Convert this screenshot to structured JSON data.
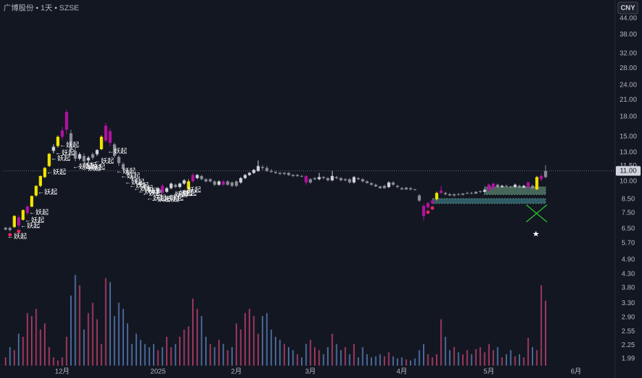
{
  "chart_data": {
    "type": "candlestick",
    "title": "广博股份 • 1天 • SZSE",
    "currency": "CNY",
    "log_scale": true,
    "grid": false,
    "ylim": [
      1.87,
      52.1
    ],
    "yticks": [
      {
        "value": 44,
        "label": "44.00"
      },
      {
        "value": 38,
        "label": "38.00"
      },
      {
        "value": 32,
        "label": "32.00"
      },
      {
        "value": 28,
        "label": "28.00"
      },
      {
        "value": 24,
        "label": "24.00"
      },
      {
        "value": 21,
        "label": "21.00"
      },
      {
        "value": 18,
        "label": "18.00"
      },
      {
        "value": 15,
        "label": "15.00"
      },
      {
        "value": 13,
        "label": "13.00"
      },
      {
        "value": 11.5,
        "label": "11.50"
      },
      {
        "value": 10,
        "label": "10.00"
      },
      {
        "value": 8.5,
        "label": "8.50"
      },
      {
        "value": 7.5,
        "label": "7.50"
      },
      {
        "value": 6.5,
        "label": "6.50"
      },
      {
        "value": 5.7,
        "label": "5.70"
      },
      {
        "value": 4.9,
        "label": "4.90"
      },
      {
        "value": 4.3,
        "label": "4.30"
      },
      {
        "value": 3.8,
        "label": "3.80"
      },
      {
        "value": 3.3,
        "label": "3.30"
      },
      {
        "value": 2.9,
        "label": "2.90"
      },
      {
        "value": 2.55,
        "label": "2.55"
      },
      {
        "value": 2.25,
        "label": "2.25"
      },
      {
        "value": 1.99,
        "label": "1.99"
      }
    ],
    "last_price": {
      "value": 11.0,
      "label": "11.00"
    },
    "categories": [
      null,
      null,
      null,
      null,
      null,
      null,
      null,
      null,
      null,
      null,
      null,
      null,
      null,
      "12月",
      null,
      null,
      null,
      null,
      null,
      null,
      null,
      null,
      null,
      null,
      null,
      null,
      null,
      null,
      null,
      null,
      null,
      null,
      null,
      null,
      null,
      "2025",
      null,
      null,
      null,
      null,
      null,
      null,
      null,
      null,
      null,
      null,
      null,
      null,
      null,
      null,
      null,
      null,
      null,
      "2月",
      null,
      null,
      null,
      null,
      null,
      null,
      null,
      null,
      null,
      null,
      null,
      null,
      null,
      null,
      null,
      null,
      "3月",
      null,
      null,
      null,
      null,
      null,
      null,
      null,
      null,
      null,
      null,
      null,
      null,
      null,
      null,
      null,
      null,
      null,
      null,
      null,
      null,
      "4月",
      null,
      null,
      null,
      null,
      null,
      null,
      null,
      null,
      null,
      null,
      null,
      null,
      null,
      null,
      null,
      null,
      null,
      null,
      null,
      "5月",
      null,
      null,
      null,
      null,
      null,
      null,
      null,
      null,
      null,
      null,
      null,
      null,
      null,
      null,
      null,
      null,
      null,
      null,
      null,
      "6月",
      null,
      null,
      null,
      null,
      null,
      null,
      null,
      null
    ],
    "ohlc": [
      [
        6.45,
        6.62,
        6.4,
        6.55
      ],
      [
        6.55,
        6.62,
        6.35,
        6.42
      ],
      [
        6.6,
        7.35,
        6.55,
        7.3
      ],
      [
        7.2,
        7.35,
        6.55,
        6.7
      ],
      [
        7.05,
        7.75,
        7.0,
        7.7
      ],
      [
        7.5,
        8.05,
        7.35,
        7.95
      ],
      [
        7.95,
        8.8,
        7.9,
        8.75
      ],
      [
        8.8,
        9.65,
        8.7,
        9.6
      ],
      [
        9.6,
        10.55,
        9.5,
        10.5
      ],
      [
        10.4,
        11.4,
        10.3,
        11.3
      ],
      [
        11.5,
        12.95,
        11.4,
        12.85
      ],
      [
        13.2,
        14.0,
        12.9,
        13.7
      ],
      [
        13.8,
        15.2,
        13.6,
        15.0
      ],
      [
        15.0,
        16.4,
        14.6,
        15.9
      ],
      [
        16.0,
        19.2,
        15.4,
        18.8
      ],
      [
        15.5,
        16.0,
        13.0,
        13.3
      ],
      [
        13.2,
        13.6,
        12.0,
        12.3
      ],
      [
        12.3,
        13.0,
        12.1,
        12.8
      ],
      [
        12.6,
        12.9,
        11.8,
        12.0
      ],
      [
        12.1,
        12.6,
        11.9,
        12.4
      ],
      [
        12.4,
        13.0,
        12.2,
        12.8
      ],
      [
        12.8,
        13.4,
        12.6,
        13.3
      ],
      [
        13.4,
        15.2,
        13.3,
        15.0
      ],
      [
        14.5,
        17.0,
        14.3,
        16.6
      ],
      [
        15.8,
        16.2,
        13.8,
        14.2
      ],
      [
        14.0,
        14.2,
        12.4,
        12.6
      ],
      [
        12.5,
        12.7,
        11.5,
        11.8
      ],
      [
        11.7,
        11.9,
        11.0,
        11.2
      ],
      [
        11.1,
        11.3,
        10.4,
        10.6
      ],
      [
        10.5,
        10.6,
        10.1,
        10.2
      ],
      [
        10.2,
        10.3,
        9.8,
        9.9
      ],
      [
        9.9,
        10.1,
        9.6,
        9.7
      ],
      [
        9.7,
        9.9,
        9.4,
        9.5
      ],
      [
        9.5,
        9.6,
        9.0,
        9.1
      ],
      [
        9.2,
        9.4,
        8.9,
        9.0
      ],
      [
        9.0,
        9.5,
        8.9,
        9.4
      ],
      [
        9.6,
        9.8,
        8.9,
        9.0
      ],
      [
        9.1,
        9.5,
        9.0,
        9.4
      ],
      [
        9.4,
        9.9,
        9.3,
        9.8
      ],
      [
        9.7,
        9.8,
        9.4,
        9.5
      ],
      [
        9.5,
        9.9,
        9.4,
        9.8
      ],
      [
        9.8,
        10.2,
        9.7,
        10.1
      ],
      [
        9.3,
        10.2,
        9.2,
        10.0
      ],
      [
        10.0,
        10.8,
        9.9,
        10.6
      ],
      [
        10.3,
        10.7,
        10.2,
        10.6
      ],
      [
        10.5,
        10.6,
        10.1,
        10.2
      ],
      [
        10.2,
        10.3,
        9.9,
        10.0
      ],
      [
        10.0,
        10.3,
        9.9,
        10.2
      ],
      [
        10.0,
        10.1,
        9.6,
        9.7
      ],
      [
        9.7,
        10.1,
        9.6,
        10.0
      ],
      [
        10.0,
        10.1,
        9.6,
        9.7
      ],
      [
        9.7,
        10.1,
        9.6,
        10.0
      ],
      [
        9.9,
        10.0,
        9.5,
        9.6
      ],
      [
        9.6,
        10.1,
        9.5,
        10.0
      ],
      [
        9.9,
        10.4,
        9.8,
        10.3
      ],
      [
        10.3,
        10.7,
        10.2,
        10.6
      ],
      [
        10.6,
        10.9,
        10.5,
        10.8
      ],
      [
        10.8,
        11.2,
        10.7,
        11.1
      ],
      [
        11.0,
        12.1,
        10.9,
        11.5
      ],
      [
        11.4,
        11.6,
        11.1,
        11.3
      ],
      [
        11.3,
        11.5,
        10.9,
        11.0
      ],
      [
        11.0,
        11.2,
        10.8,
        10.9
      ],
      [
        10.9,
        11.0,
        10.7,
        10.8
      ],
      [
        10.8,
        10.9,
        10.6,
        10.7
      ],
      [
        10.7,
        10.9,
        10.6,
        10.8
      ],
      [
        10.8,
        10.9,
        10.5,
        10.6
      ],
      [
        10.6,
        10.7,
        10.4,
        10.5
      ],
      [
        10.5,
        10.7,
        10.4,
        10.6
      ],
      [
        10.5,
        10.6,
        10.4,
        10.45
      ],
      [
        10.5,
        10.6,
        9.7,
        9.9
      ],
      [
        9.9,
        10.3,
        9.8,
        10.2
      ],
      [
        10.2,
        10.4,
        10.1,
        10.3
      ],
      [
        10.2,
        10.8,
        10.1,
        10.4
      ],
      [
        10.4,
        10.5,
        10.2,
        10.3
      ],
      [
        10.3,
        10.4,
        10.0,
        10.1
      ],
      [
        10.1,
        11.0,
        10.0,
        10.5
      ],
      [
        10.4,
        10.5,
        10.2,
        10.3
      ],
      [
        10.3,
        10.4,
        10.0,
        10.1
      ],
      [
        10.1,
        10.3,
        10.0,
        10.2
      ],
      [
        10.2,
        10.3,
        9.8,
        9.9
      ],
      [
        9.9,
        10.5,
        9.8,
        10.4
      ],
      [
        10.3,
        10.4,
        10.1,
        10.2
      ],
      [
        10.2,
        10.3,
        9.9,
        10.0
      ],
      [
        10.0,
        10.1,
        9.8,
        9.85
      ],
      [
        9.85,
        9.9,
        9.6,
        9.7
      ],
      [
        9.7,
        9.8,
        9.5,
        9.55
      ],
      [
        9.55,
        9.6,
        9.35,
        9.4
      ],
      [
        9.4,
        9.7,
        9.35,
        9.6
      ],
      [
        9.5,
        10.0,
        9.4,
        9.9
      ],
      [
        9.9,
        10.0,
        9.6,
        9.7
      ],
      [
        9.6,
        9.7,
        9.4,
        9.5
      ],
      [
        9.4,
        9.5,
        9.25,
        9.3
      ],
      [
        9.3,
        9.5,
        9.25,
        9.45
      ],
      [
        9.4,
        9.5,
        9.2,
        9.3
      ],
      [
        9.3,
        9.35,
        9.2,
        9.25
      ],
      [
        8.8,
        8.9,
        8.3,
        8.4
      ],
      [
        8.0,
        8.1,
        7.0,
        7.3
      ],
      [
        7.9,
        8.3,
        7.8,
        8.2
      ],
      [
        8.2,
        8.5,
        8.1,
        8.4
      ],
      [
        8.5,
        9.1,
        8.4,
        9.0
      ],
      [
        9.0,
        9.6,
        8.9,
        9.2
      ],
      [
        9.0,
        9.1,
        8.8,
        8.9
      ],
      [
        8.9,
        9.0,
        8.75,
        8.8
      ],
      [
        8.8,
        8.95,
        8.7,
        8.9
      ],
      [
        8.9,
        9.0,
        8.8,
        8.85
      ],
      [
        8.85,
        9.0,
        8.8,
        8.95
      ],
      [
        8.95,
        9.1,
        8.9,
        9.0
      ],
      [
        9.0,
        9.1,
        8.9,
        8.95
      ],
      [
        8.95,
        9.15,
        8.9,
        9.1
      ],
      [
        9.1,
        9.2,
        9.0,
        9.15
      ],
      [
        9.1,
        9.3,
        9.05,
        9.25
      ],
      [
        9.2,
        9.8,
        9.15,
        9.7
      ],
      [
        9.4,
        9.9,
        9.3,
        9.8
      ],
      [
        9.7,
        9.8,
        9.4,
        9.5
      ],
      [
        9.5,
        9.7,
        9.45,
        9.6
      ],
      [
        9.6,
        9.7,
        9.5,
        9.55
      ],
      [
        9.55,
        9.6,
        9.4,
        9.5
      ],
      [
        9.5,
        9.8,
        9.45,
        9.7
      ],
      [
        9.6,
        9.7,
        9.4,
        9.45
      ],
      [
        9.45,
        9.7,
        9.4,
        9.6
      ],
      [
        9.5,
        10.0,
        9.3,
        9.9
      ],
      [
        9.6,
        9.7,
        9.3,
        9.4
      ],
      [
        9.3,
        10.5,
        9.25,
        10.4
      ],
      [
        10.2,
        10.7,
        10.0,
        10.5
      ],
      [
        10.4,
        11.6,
        10.3,
        11.0
      ],
      null,
      null,
      null,
      null,
      null,
      null,
      null,
      null,
      null,
      null,
      null,
      null,
      null,
      null,
      null
    ],
    "colors": [
      "#8a8d96",
      "#8a8d96",
      "#f2e600",
      "#b0139f",
      "#f2e600",
      "#b0139f",
      "#f2e600",
      "#f2e600",
      "#f2e600",
      "#f2e600",
      "#f2e600",
      "#d1d4dc",
      "#f2e600",
      "#b0139f",
      "#b0139f",
      "#8a8d96",
      "#8a8d96",
      "#d1d4dc",
      "#8a8d96",
      "#d1d4dc",
      "#8a8d96",
      "#d1d4dc",
      "#f2e600",
      "#b0139f",
      "#b0139f",
      "#8a8d96",
      "#8a8d96",
      "#8a8d96",
      "#8a8d96",
      "#8a8d96",
      "#8a8d96",
      "#8a8d96",
      "#8a8d96",
      "#8a8d96",
      "#8a8d96",
      "#d1d4dc",
      "#b0139f",
      "#d1d4dc",
      "#d1d4dc",
      "#8a8d96",
      "#d1d4dc",
      "#d1d4dc",
      "#f2e600",
      "#b0139f",
      "#d1d4dc",
      "#8a8d96",
      "#8a8d96",
      "#8a8d96",
      "#8a8d96",
      "#d1d4dc",
      "#b0139f",
      "#8a8d96",
      "#8a8d96",
      "#8a8d96",
      "#d1d4dc",
      "#d1d4dc",
      "#d1d4dc",
      "#d1d4dc",
      "#d1d4dc",
      "#8a8d96",
      "#8a8d96",
      "#8a8d96",
      "#8a8d96",
      "#8a8d96",
      "#8a8d96",
      "#8a8d96",
      "#8a8d96",
      "#8a8d96",
      "#8a8d96",
      "#b0139f",
      "#8a8d96",
      "#8a8d96",
      "#d1d4dc",
      "#8a8d96",
      "#8a8d96",
      "#d1d4dc",
      "#8a8d96",
      "#8a8d96",
      "#8a8d96",
      "#8a8d96",
      "#d1d4dc",
      "#8a8d96",
      "#8a8d96",
      "#8a8d96",
      "#8a8d96",
      "#8a8d96",
      "#8a8d96",
      "#8a8d96",
      "#d1d4dc",
      "#8a8d96",
      "#8a8d96",
      "#8a8d96",
      "#8a8d96",
      "#8a8d96",
      "#8a8d96",
      "#8a8d96",
      "#b0139f",
      "#b0139f",
      "#b0139f",
      "#f2e600",
      "#b0139f",
      "#8a8d96",
      "#8a8d96",
      "#8a8d96",
      "#8a8d96",
      "#8a8d96",
      "#8a8d96",
      "#8a8d96",
      "#8a8d96",
      "#8a8d96",
      "#d1d4dc",
      "#b0139f",
      "#b0139f",
      "#8a8d96",
      "#d1d4dc",
      "#8a8d96",
      "#8a8d96",
      "#d1d4dc",
      "#8a8d96",
      "#d1d4dc",
      "#b0139f",
      "#8a8d96",
      "#f2e600",
      "#b0139f",
      "#8a8d96",
      null,
      null,
      null,
      null,
      null,
      null,
      null,
      null,
      null,
      null,
      null,
      null,
      null,
      null,
      null
    ],
    "volume": [
      8,
      18,
      15,
      31,
      28,
      51,
      48,
      55,
      35,
      41,
      18,
      8,
      5,
      8,
      28,
      68,
      88,
      78,
      35,
      51,
      61,
      45,
      21,
      85,
      81,
      48,
      61,
      55,
      41,
      21,
      31,
      25,
      21,
      18,
      21,
      15,
      18,
      28,
      18,
      21,
      28,
      35,
      38,
      65,
      55,
      48,
      28,
      21,
      18,
      25,
      21,
      15,
      18,
      41,
      35,
      51,
      55,
      48,
      31,
      48,
      51,
      35,
      28,
      25,
      21,
      18,
      15,
      11,
      8,
      21,
      25,
      18,
      15,
      11,
      18,
      31,
      21,
      15,
      18,
      11,
      21,
      8,
      18,
      11,
      8,
      9,
      11,
      9,
      13,
      9,
      7,
      8,
      6,
      5,
      7,
      15,
      21,
      11,
      8,
      11,
      45,
      28,
      15,
      18,
      13,
      11,
      15,
      11,
      16,
      18,
      13,
      21,
      15,
      18,
      8,
      11,
      15,
      9,
      11,
      8,
      27,
      18,
      15,
      78,
      63,
      null,
      null,
      null,
      null,
      null,
      null,
      null,
      null,
      null,
      null,
      null,
      null,
      null,
      null,
      null
    ],
    "vlim": [
      0,
      100
    ],
    "volume_up_color": "#c8426f",
    "volume_down_color": "#5b82bd",
    "signal_label": "←妖起",
    "signal_color": "#ffffff",
    "signal_at": [
      1,
      4,
      5,
      6,
      8,
      10,
      11,
      12,
      13,
      16,
      17,
      18,
      19,
      21,
      24,
      26,
      27,
      28,
      29,
      30,
      31,
      32,
      33,
      34,
      36,
      37,
      38,
      39,
      40,
      41
    ],
    "dot_color": "#e8245f",
    "dots_at": [
      1,
      3,
      97,
      98
    ]
  }
}
